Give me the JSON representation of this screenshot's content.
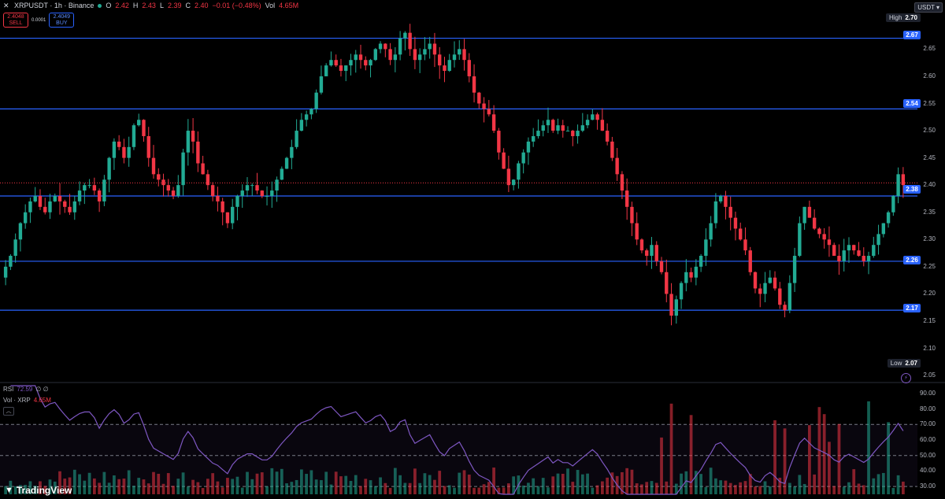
{
  "header": {
    "symbol": "XRPUSDT · 1h · Binance",
    "o_label": "O",
    "o_value": "2.42",
    "h_label": "H",
    "h_value": "2.43",
    "l_label": "L",
    "l_value": "2.39",
    "c_label": "C",
    "c_value": "2.40",
    "change": "−0.01 (−0.48%)",
    "vol_label": "Vol",
    "vol_value": "4.65M"
  },
  "trade": {
    "sell_price": "2.4048",
    "sell_label": "SELL",
    "spread": "0.0001",
    "buy_price": "2.4049",
    "buy_label": "BUY"
  },
  "currency": "USDT",
  "price_axis": {
    "ticks": [
      "2.65",
      "2.60",
      "2.55",
      "2.50",
      "2.45",
      "2.40",
      "2.35",
      "2.30",
      "2.25",
      "2.20",
      "2.15",
      "2.10",
      "2.05"
    ],
    "high_label": "High",
    "high_value": "2.70",
    "low_label": "Low",
    "low_value": "2.07"
  },
  "levels": [
    "2.67",
    "2.54",
    "2.38",
    "2.26",
    "2.17"
  ],
  "rsi_axis": {
    "ticks": [
      "90.00",
      "80.00",
      "70.00",
      "60.00",
      "50.00",
      "40.00",
      "30.00"
    ]
  },
  "indicators": {
    "rsi_label": "RSI",
    "rsi_value": "72.59",
    "rsi_extra": "∅ ∅",
    "vol_label": "Vol · XRP",
    "vol_value": "4.65M"
  },
  "brand": "TradingView",
  "colors": {
    "up": "#22ab94",
    "down": "#f23645",
    "level": "#2962ff",
    "rsi": "#7e57c2",
    "current_price_line": "#f23645"
  },
  "chart_data": {
    "type": "candlestick",
    "symbol": "XRPUSDT",
    "interval": "1h",
    "ylim": [
      2.04,
      2.72
    ],
    "close_series": [
      2.25,
      2.27,
      2.3,
      2.33,
      2.35,
      2.37,
      2.38,
      2.36,
      2.35,
      2.37,
      2.38,
      2.37,
      2.36,
      2.35,
      2.37,
      2.39,
      2.4,
      2.4,
      2.39,
      2.37,
      2.41,
      2.45,
      2.48,
      2.47,
      2.45,
      2.47,
      2.51,
      2.52,
      2.49,
      2.45,
      2.42,
      2.41,
      2.4,
      2.39,
      2.38,
      2.4,
      2.46,
      2.5,
      2.48,
      2.44,
      2.42,
      2.4,
      2.38,
      2.37,
      2.35,
      2.33,
      2.36,
      2.38,
      2.39,
      2.4,
      2.4,
      2.39,
      2.38,
      2.38,
      2.39,
      2.41,
      2.43,
      2.45,
      2.47,
      2.5,
      2.52,
      2.53,
      2.54,
      2.57,
      2.6,
      2.62,
      2.63,
      2.62,
      2.61,
      2.62,
      2.63,
      2.64,
      2.63,
      2.62,
      2.63,
      2.65,
      2.66,
      2.65,
      2.63,
      2.64,
      2.67,
      2.68,
      2.65,
      2.63,
      2.64,
      2.65,
      2.66,
      2.64,
      2.62,
      2.61,
      2.63,
      2.64,
      2.65,
      2.63,
      2.6,
      2.57,
      2.55,
      2.54,
      2.53,
      2.5,
      2.46,
      2.43,
      2.4,
      2.41,
      2.44,
      2.46,
      2.48,
      2.49,
      2.5,
      2.51,
      2.52,
      2.5,
      2.51,
      2.5,
      2.5,
      2.49,
      2.5,
      2.51,
      2.52,
      2.53,
      2.52,
      2.5,
      2.48,
      2.45,
      2.42,
      2.39,
      2.36,
      2.33,
      2.3,
      2.28,
      2.27,
      2.29,
      2.26,
      2.24,
      2.2,
      2.16,
      2.19,
      2.22,
      2.24,
      2.23,
      2.25,
      2.27,
      2.3,
      2.33,
      2.37,
      2.38,
      2.36,
      2.34,
      2.32,
      2.3,
      2.28,
      2.24,
      2.21,
      2.2,
      2.22,
      2.23,
      2.21,
      2.18,
      2.17,
      2.22,
      2.27,
      2.33,
      2.36,
      2.34,
      2.32,
      2.31,
      2.3,
      2.29,
      2.27,
      2.26,
      2.28,
      2.29,
      2.28,
      2.27,
      2.26,
      2.27,
      2.29,
      2.31,
      2.33,
      2.35,
      2.38,
      2.42,
      2.4
    ],
    "volume_pattern": "relative volumes, low except spikes near the end",
    "rsi_latest": 72.59,
    "horizontal_levels": [
      2.67,
      2.54,
      2.38,
      2.26,
      2.17
    ],
    "current_price": 2.404,
    "high": 2.7,
    "low": 2.07,
    "rsi_ylim": [
      25,
      95
    ],
    "rsi_guides": [
      70,
      50,
      30
    ]
  }
}
